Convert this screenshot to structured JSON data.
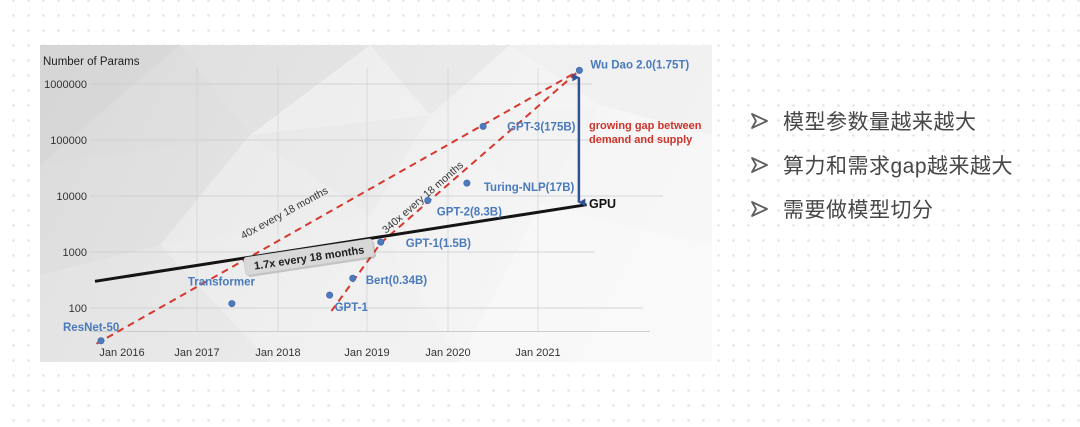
{
  "meta": {
    "background_dot_color": "#e8e8e8"
  },
  "chart_data": {
    "type": "scatter",
    "title": "Number of Params",
    "x_ticks": [
      {
        "label": "Jan 2016",
        "year": 2016
      },
      {
        "label": "Jan 2017",
        "year": 2017
      },
      {
        "label": "Jan 2018",
        "year": 2018
      },
      {
        "label": "Jan 2019",
        "year": 2019
      },
      {
        "label": "Jan 2020",
        "year": 2020
      },
      {
        "label": "Jan 2021",
        "year": 2021
      }
    ],
    "y_ticks": [
      {
        "label": "100",
        "value_m": 100
      },
      {
        "label": "1000",
        "value_m": 1000
      },
      {
        "label": "10000",
        "value_m": 10000
      },
      {
        "label": "100000",
        "value_m": 100000
      },
      {
        "label": "1000000",
        "value_m": 1000000
      }
    ],
    "points": [
      {
        "label": "ResNet-50",
        "year": 2015.72,
        "params_m": 26
      },
      {
        "label": "Transformer",
        "year": 2017.43,
        "params_m": 120
      },
      {
        "label": "GPT-1",
        "year": 2018.58,
        "params_m": 170
      },
      {
        "label": "Bert(0.34B)",
        "year": 2018.84,
        "params_m": 340
      },
      {
        "label": "GPT-1(1.5B)",
        "year": 2019.17,
        "params_m": 1500
      },
      {
        "label": "GPT-2(8.3B)",
        "year": 2019.75,
        "params_m": 8300
      },
      {
        "label": "Turing-NLP(17B)",
        "year": 2020.21,
        "params_m": 17000
      },
      {
        "label": "GPT-3(175B)",
        "year": 2020.39,
        "params_m": 175000
      },
      {
        "label": "Wu Dao 2.0(1.75T)",
        "year": 2021.46,
        "params_m": 1750000
      }
    ],
    "trend_lines": [
      {
        "id": "demand-40x",
        "label": "40x every 18 months",
        "style": "dashed",
        "color": "#d6382e",
        "points": [
          {
            "year": 2015.66,
            "params_m": 23
          },
          {
            "year": 2021.46,
            "params_m": 1750000
          }
        ]
      },
      {
        "id": "demand-340x",
        "label": "340x every 18 months",
        "style": "dashed",
        "color": "#d6382e",
        "points": [
          {
            "year": 2018.6,
            "params_m": 88
          },
          {
            "year": 2019.17,
            "params_m": 1450
          },
          {
            "year": 2021.46,
            "params_m": 1750000
          }
        ]
      },
      {
        "id": "gpu-supply",
        "label": "GPU",
        "band_label": "1.7x every 18 months",
        "style": "solid",
        "color": "#141414",
        "points": [
          {
            "year": 2015.64,
            "params_m": 300
          },
          {
            "year": 2021.54,
            "params_m": 7000
          }
        ]
      }
    ],
    "annotations": {
      "gap_line1": "growing gap between",
      "gap_line2": "demand and supply",
      "gpu_label": "GPU"
    },
    "colors": {
      "point": "#4d79bd",
      "point_label": "#4a7abc",
      "red": "#d6382e",
      "arrow": "#2e5394",
      "grid": "#c9cdd2",
      "tick_text": "#333333"
    }
  },
  "bullets": {
    "items": [
      {
        "text": "模型参数量越来越大"
      },
      {
        "text": "算力和需求gap越来越大"
      },
      {
        "text": "需要做模型切分"
      }
    ]
  }
}
